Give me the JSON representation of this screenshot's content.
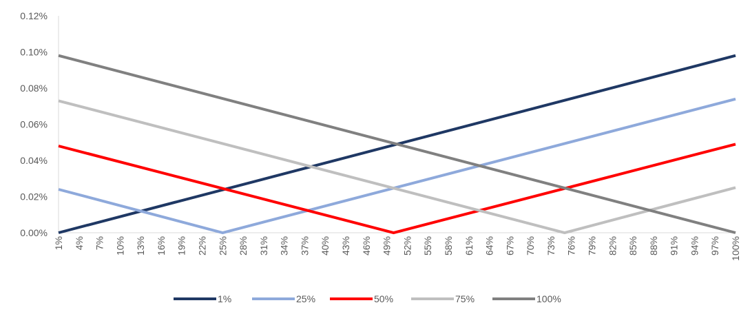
{
  "chart_data": {
    "type": "line",
    "title": "",
    "xlabel": "",
    "ylabel": "",
    "x_tick_labels": [
      "1%",
      "4%",
      "7%",
      "10%",
      "13%",
      "16%",
      "19%",
      "22%",
      "25%",
      "28%",
      "31%",
      "34%",
      "37%",
      "40%",
      "43%",
      "46%",
      "49%",
      "52%",
      "55%",
      "58%",
      "61%",
      "64%",
      "67%",
      "70%",
      "73%",
      "76%",
      "79%",
      "82%",
      "85%",
      "88%",
      "91%",
      "94%",
      "97%",
      "100%"
    ],
    "xlim": [
      1,
      100
    ],
    "y_tick_labels": [
      "0.00%",
      "0.02%",
      "0.04%",
      "0.06%",
      "0.08%",
      "0.10%",
      "0.12%"
    ],
    "ylim": [
      0,
      0.12
    ],
    "grid": false,
    "legend_position": "bottom",
    "series": [
      {
        "name": "1%",
        "color": "#1F3864",
        "x": [
          1,
          100
        ],
        "y": [
          0.0,
          0.098
        ]
      },
      {
        "name": "25%",
        "color": "#8EA9DB",
        "x": [
          1,
          25,
          100
        ],
        "y": [
          0.024,
          0.0,
          0.074
        ]
      },
      {
        "name": "50%",
        "color": "#FF0000",
        "x": [
          1,
          50,
          100
        ],
        "y": [
          0.048,
          0.0,
          0.049
        ]
      },
      {
        "name": "75%",
        "color": "#BFBFBF",
        "x": [
          1,
          75,
          100
        ],
        "y": [
          0.073,
          0.0,
          0.025
        ]
      },
      {
        "name": "100%",
        "color": "#808080",
        "x": [
          1,
          100
        ],
        "y": [
          0.098,
          0.0
        ]
      }
    ]
  }
}
